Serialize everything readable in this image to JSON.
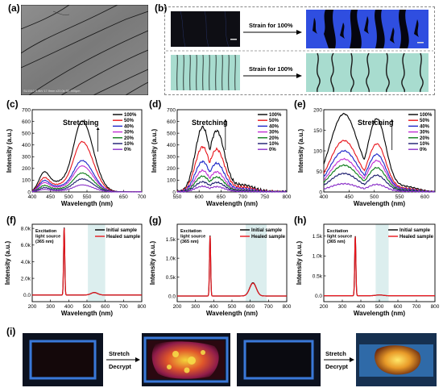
{
  "labels": {
    "a": "(a)",
    "b": "(b)",
    "c": "(c)",
    "d": "(d)",
    "e": "(e)",
    "f": "(f)",
    "g": "(g)",
    "h": "(h)",
    "i": "(i)"
  },
  "panel_a": {
    "sem_caption": "SU1510 5.0kV 17.9mm x20.0k SE   500μm"
  },
  "panel_b": {
    "strain_top": "Strain for 100%",
    "strain_bottom": "Strain for 100%"
  },
  "panel_i": {
    "arrow1_top": "Stretch",
    "arrow1_bottom": "Decrypt",
    "arrow2_top": "Stretch",
    "arrow2_bottom": "Decrypt"
  },
  "colors": {
    "s100": "#000000",
    "s50": "#e8141b",
    "s40": "#1c25c8",
    "s30": "#c12fd3",
    "s20": "#0b7a17",
    "s10": "#1b1b6e",
    "s0": "#8a30c8",
    "initial": "#000000",
    "healed": "#e8141b",
    "shade": "#dceeee"
  },
  "chart_data": [
    {
      "id": "c",
      "type": "line",
      "xlabel": "Wavelength (nm)",
      "ylabel": "Intensity (a.u.)",
      "xlim": [
        400,
        700
      ],
      "ylim": [
        0,
        700
      ],
      "xticks": [
        400,
        450,
        500,
        550,
        600,
        650,
        700
      ],
      "yticks": [
        0,
        100,
        200,
        300,
        400,
        500,
        600,
        700
      ],
      "annotation": "Stretching",
      "legend": [
        "100%",
        "50%",
        "40%",
        "30%",
        "20%",
        "10%",
        "0%"
      ],
      "legend_placement": "top-right",
      "peaks": {
        "main_nm": 537,
        "shoulder_nm": 432,
        "values_main": [
          600,
          425,
          265,
          220,
          160,
          110,
          60
        ],
        "values_shoulder": [
          140,
          100,
          80,
          65,
          45,
          30,
          18
        ]
      }
    },
    {
      "id": "d",
      "type": "line",
      "xlabel": "Wavelength (nm)",
      "ylabel": "Intensity (a.u.)",
      "xlim": [
        550,
        800
      ],
      "ylim": [
        0,
        700
      ],
      "xticks": [
        550,
        600,
        650,
        700,
        750,
        800
      ],
      "yticks": [
        0,
        100,
        200,
        300,
        400,
        500,
        600,
        700
      ],
      "annotation": "Stretching",
      "legend": [
        "100%",
        "50%",
        "40%",
        "30%",
        "20%",
        "10%",
        "0%"
      ],
      "legend_placement": "top-right",
      "peaks": {
        "main_nm": 615,
        "values_main": [
          575,
          400,
          270,
          190,
          140,
          90,
          50
        ]
      }
    },
    {
      "id": "e",
      "type": "line",
      "xlabel": "Wavelength (nm)",
      "ylabel": "Intensity (a.u.)",
      "xlim": [
        400,
        620
      ],
      "ylim": [
        0,
        200
      ],
      "xticks": [
        400,
        450,
        500,
        550,
        600
      ],
      "yticks": [
        0,
        50,
        100,
        150,
        200
      ],
      "annotation": "Stretching",
      "legend": [
        "100%",
        "50%",
        "40%",
        "30%",
        "20%",
        "10%",
        "0%"
      ],
      "legend_placement": "top-right",
      "peaks": {
        "p1_nm": 440,
        "p2_nm": 505,
        "values_p1": [
          190,
          125,
          100,
          80,
          65,
          45,
          20
        ],
        "values_p2": [
          175,
          115,
          90,
          75,
          58,
          40,
          18
        ]
      }
    },
    {
      "id": "f",
      "type": "line",
      "xlabel": "Wavelength (nm)",
      "ylabel": "Intensity (a.u.)",
      "xlim": [
        200,
        800
      ],
      "ylim": [
        -0.8,
        8.5
      ],
      "xticks": [
        200,
        300,
        400,
        500,
        600,
        700,
        800
      ],
      "yticks": [
        0.0,
        2.0,
        4.0,
        6.0,
        8.0
      ],
      "ytick_labels": [
        "0.0",
        "2.0k",
        "4.0k",
        "6.0k",
        "8.0k"
      ],
      "annotation": "Excitation light source (365 nm)",
      "legend": [
        "Initial sample",
        "Healed sample"
      ],
      "shade": [
        505,
        600
      ],
      "excitation_nm": 375,
      "excitation_peak": 8.1,
      "emission_nm": 540,
      "emission_peak": 0.3
    },
    {
      "id": "g",
      "type": "line",
      "xlabel": "Wavelength (nm)",
      "ylabel": "Intensity (a.u.)",
      "xlim": [
        200,
        800
      ],
      "ylim": [
        -0.15,
        1.9
      ],
      "xticks": [
        200,
        300,
        400,
        500,
        600,
        700,
        800
      ],
      "yticks": [
        0.0,
        0.5,
        1.0,
        1.5
      ],
      "ytick_labels": [
        "0.0",
        "0.5k",
        "1.0k",
        "1.5k"
      ],
      "annotation": "Excitation light source (365 nm)",
      "legend": [
        "Initial sample",
        "Healed sample"
      ],
      "shade": [
        575,
        690
      ],
      "excitation_nm": 380,
      "excitation_peak": 1.6,
      "emission_nm": 615,
      "emission_peak": 0.35
    },
    {
      "id": "h",
      "type": "line",
      "xlabel": "Wavelength (nm)",
      "ylabel": "Intensity (a.u.)",
      "xlim": [
        200,
        800
      ],
      "ylim": [
        -0.15,
        1.8
      ],
      "xticks": [
        200,
        300,
        400,
        500,
        600,
        700,
        800
      ],
      "yticks": [
        0.0,
        0.5,
        1.0,
        1.5
      ],
      "ytick_labels": [
        "0.0",
        "0.5k",
        "1.0k",
        "1.5k"
      ],
      "annotation": "Excitation light source (365 nm)",
      "legend": [
        "Initial sample",
        "Healed sample"
      ],
      "shade": [
        480,
        550
      ],
      "excitation_nm": 370,
      "excitation_peak": 1.5,
      "emission_nm": 500,
      "emission_peak": 0.02
    }
  ]
}
